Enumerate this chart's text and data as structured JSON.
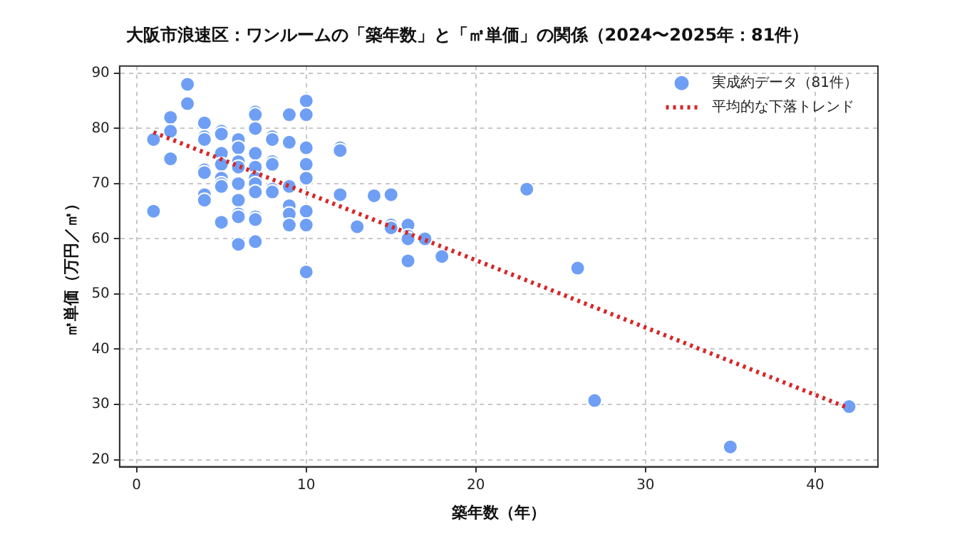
{
  "chart_data": {
    "type": "scatter",
    "title": "大阪市浪速区：ワンルームの「築年数」と「㎡単価」の関係（2024〜2025年：81件）",
    "xlabel": "築年数（年）",
    "ylabel": "㎡単価（万円／㎡）",
    "xlim": [
      -1,
      43.7
    ],
    "ylim": [
      18.7,
      91.3
    ],
    "xticks": [
      0,
      10,
      20,
      30,
      40
    ],
    "yticks": [
      20,
      30,
      40,
      50,
      60,
      70,
      80,
      90
    ],
    "grid": true,
    "legend": "top right",
    "marker": "circle",
    "series": [
      {
        "name": "実成約データ（81件）",
        "color": "#6f9ff5",
        "x": [
          1,
          1,
          2,
          2,
          2,
          3,
          3,
          4,
          4,
          4,
          4,
          4,
          4,
          4,
          5,
          5,
          5,
          5,
          5,
          5,
          5,
          5,
          6,
          6,
          6,
          6,
          6,
          6,
          6,
          6,
          6,
          7,
          7,
          7,
          7,
          7,
          7,
          7,
          7,
          7,
          7,
          7,
          8,
          8,
          8,
          8,
          8,
          8,
          9,
          9,
          9,
          9,
          9,
          9,
          10,
          10,
          10,
          10,
          10,
          10,
          10,
          10,
          12,
          12,
          12,
          13,
          14,
          15,
          15,
          15,
          16,
          16,
          16,
          16,
          17,
          18,
          23,
          26,
          27,
          35,
          42
        ],
        "values": [
          78,
          65,
          82,
          79.5,
          74.5,
          88,
          84.5,
          81,
          78.5,
          78,
          72.5,
          72,
          68,
          67,
          79.5,
          79,
          75.5,
          73.5,
          71,
          70,
          69.5,
          63,
          78,
          76.5,
          74,
          73,
          70,
          67,
          64.5,
          64,
          59,
          83,
          82.5,
          80,
          75.5,
          73,
          71,
          70,
          68.5,
          64,
          63.5,
          59.5,
          78.5,
          78,
          74,
          73.5,
          69,
          68.5,
          82.5,
          77.5,
          69.5,
          66,
          64.5,
          62.5,
          85,
          82.5,
          76.5,
          73.5,
          71,
          65,
          62.5,
          54,
          76.5,
          76,
          68,
          62.2,
          67.8,
          68,
          62.5,
          62,
          62.5,
          60.5,
          60,
          56,
          60,
          56.8,
          69,
          54.7,
          30.7,
          22.3,
          29.6
        ]
      },
      {
        "name": "平均的な下落トレンド",
        "type": "line",
        "color": "#d62728",
        "marker": "none",
        "line_style": "dotted",
        "x": [
          1,
          42
        ],
        "values": [
          79.3,
          29.3
        ]
      }
    ]
  }
}
